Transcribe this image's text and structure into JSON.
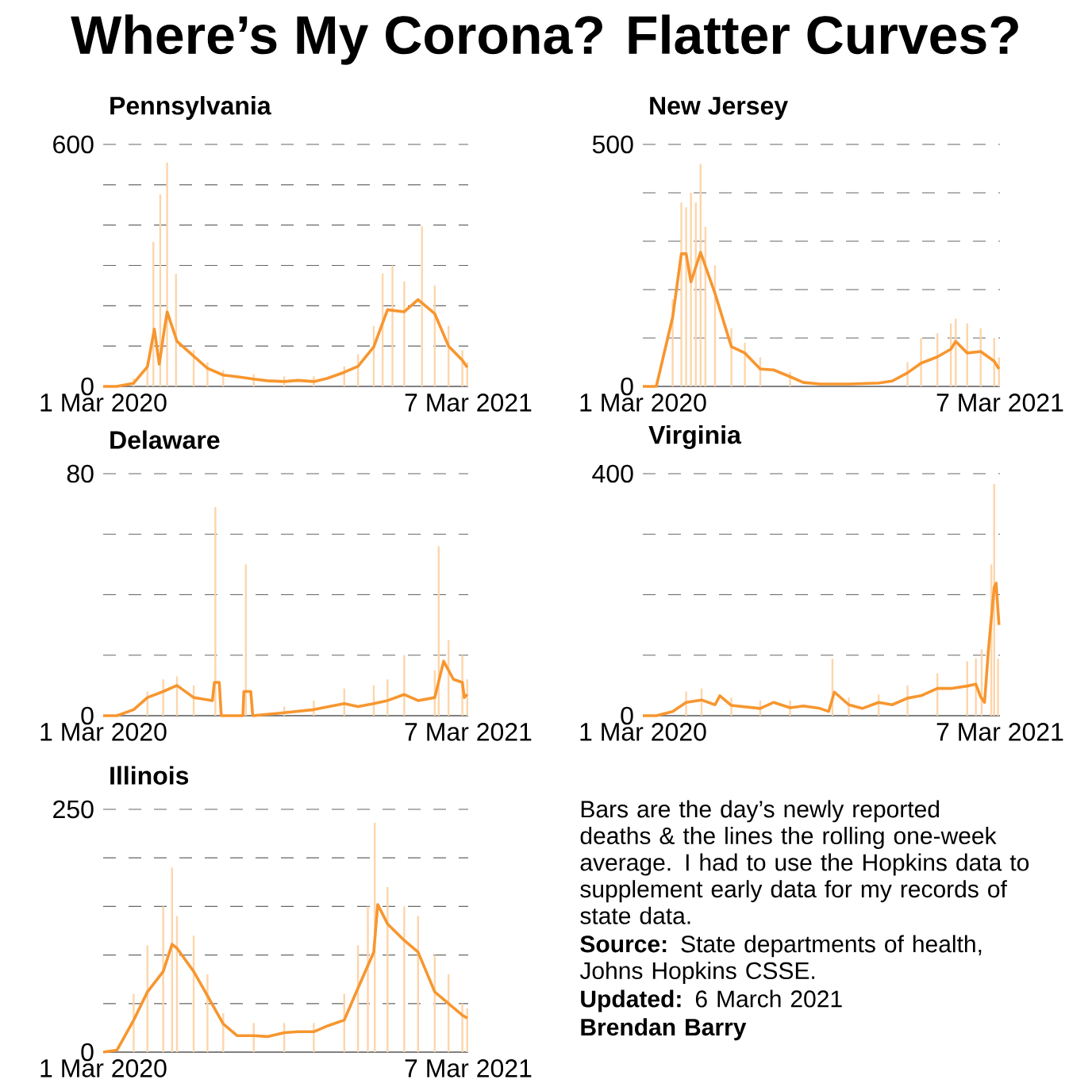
{
  "chart_data": [
    {
      "type": "bar",
      "title": "Pennsylvania",
      "grid": "y",
      "xlim": [
        "2020-03-01",
        "2021-03-07"
      ],
      "xticks": [
        {
          "value": "2020-03-01",
          "label": "1 Mar 2020"
        },
        {
          "value": "2021-03-07",
          "label": "7 Mar 2021"
        }
      ],
      "ylim": [
        0,
        600
      ],
      "yticks": [
        0,
        {
          "value": 100,
          "label": null
        },
        {
          "value": 200,
          "label": null
        },
        {
          "value": 300,
          "label": null
        },
        {
          "value": 400,
          "label": null
        },
        {
          "value": 500,
          "label": null
        },
        600
      ],
      "series": [
        {
          "type": "bar",
          "color": "#fdd5ab",
          "x": [
            "2020-03-15",
            "2020-04-01",
            "2020-04-15",
            "2020-04-21",
            "2020-04-28",
            "2020-05-05",
            "2020-05-14",
            "2020-06-01",
            "2020-06-15",
            "2020-07-01",
            "2020-08-01",
            "2020-09-01",
            "2020-10-01",
            "2020-11-01",
            "2020-11-15",
            "2020-12-01",
            "2020-12-10",
            "2020-12-20",
            "2021-01-01",
            "2021-01-19",
            "2021-02-01",
            "2021-02-15",
            "2021-03-01",
            "2021-03-06"
          ],
          "values": [
            0,
            20,
            60,
            358,
            476,
            555,
            279,
            90,
            60,
            40,
            30,
            25,
            25,
            50,
            80,
            150,
            280,
            300,
            260,
            397,
            250,
            150,
            90,
            60
          ]
        },
        {
          "type": "line",
          "color": "#f7962f",
          "x": [
            "2020-03-01",
            "2020-03-15",
            "2020-04-01",
            "2020-04-15",
            "2020-04-22",
            "2020-04-27",
            "2020-05-01",
            "2020-05-05",
            "2020-05-15",
            "2020-06-01",
            "2020-06-15",
            "2020-07-01",
            "2020-07-15",
            "2020-08-01",
            "2020-08-15",
            "2020-09-01",
            "2020-09-15",
            "2020-10-01",
            "2020-10-15",
            "2020-11-01",
            "2020-11-15",
            "2020-12-01",
            "2020-12-15",
            "2021-01-01",
            "2021-01-15",
            "2021-02-01",
            "2021-02-15",
            "2021-03-01",
            "2021-03-06"
          ],
          "values": [
            0,
            0,
            8,
            49,
            142,
            55,
            122,
            185,
            112,
            75,
            45,
            28,
            24,
            18,
            14,
            12,
            15,
            12,
            20,
            35,
            50,
            98,
            190,
            185,
            215,
            180,
            100,
            65,
            47
          ]
        }
      ]
    },
    {
      "type": "bar",
      "title": "New Jersey",
      "grid": "y",
      "xlim": [
        "2020-03-01",
        "2021-03-07"
      ],
      "xticks": [
        {
          "value": "2020-03-01",
          "label": "1 Mar 2020"
        },
        {
          "value": "2021-03-07",
          "label": "7 Mar 2021"
        }
      ],
      "ylim": [
        0,
        500
      ],
      "yticks": [
        0,
        {
          "value": 100,
          "label": null
        },
        {
          "value": 200,
          "label": null
        },
        {
          "value": 300,
          "label": null
        },
        {
          "value": 400,
          "label": null
        },
        500
      ],
      "series": [
        {
          "type": "bar",
          "color": "#fdd5ab",
          "x": [
            "2020-04-01",
            "2020-04-10",
            "2020-04-15",
            "2020-04-20",
            "2020-04-25",
            "2020-04-30",
            "2020-05-05",
            "2020-05-15",
            "2020-06-01",
            "2020-06-15",
            "2020-07-01",
            "2020-08-01",
            "2020-09-01",
            "2020-10-01",
            "2020-11-01",
            "2020-12-01",
            "2020-12-15",
            "2021-01-01",
            "2021-01-15",
            "2021-01-20",
            "2021-02-01",
            "2021-02-15",
            "2021-03-01",
            "2021-03-06"
          ],
          "values": [
            180,
            380,
            370,
            400,
            380,
            460,
            330,
            250,
            120,
            90,
            60,
            30,
            null,
            null,
            null,
            50,
            100,
            110,
            130,
            140,
            130,
            120,
            100,
            60
          ]
        },
        {
          "type": "line",
          "color": "#f7962f",
          "x": [
            "2020-03-01",
            "2020-03-15",
            "2020-04-01",
            "2020-04-10",
            "2020-04-15",
            "2020-04-20",
            "2020-04-30",
            "2020-05-15",
            "2020-06-01",
            "2020-06-15",
            "2020-07-01",
            "2020-07-15",
            "2020-08-01",
            "2020-08-15",
            "2020-09-01",
            "2020-10-01",
            "2020-11-01",
            "2020-11-15",
            "2020-12-01",
            "2020-12-15",
            "2021-01-01",
            "2021-01-15",
            "2021-01-20",
            "2021-02-01",
            "2021-02-15",
            "2021-03-01",
            "2021-03-06"
          ],
          "values": [
            0,
            0,
            143,
            274,
            274,
            216,
            277,
            192,
            82,
            69,
            36,
            34,
            20,
            8,
            5,
            5,
            7,
            11,
            28,
            48,
            61,
            77,
            93,
            69,
            72,
            52,
            36
          ]
        }
      ]
    },
    {
      "type": "bar",
      "title": "Delaware",
      "grid": "y",
      "xlim": [
        "2020-03-01",
        "2021-03-07"
      ],
      "xticks": [
        {
          "value": "2020-03-01",
          "label": "1 Mar 2020"
        },
        {
          "value": "2021-03-07",
          "label": "7 Mar 2021"
        }
      ],
      "ylim": [
        0,
        80
      ],
      "yticks": [
        0,
        {
          "value": 20,
          "label": null
        },
        {
          "value": 40,
          "label": null
        },
        {
          "value": 60,
          "label": null
        },
        80
      ],
      "series": [
        {
          "type": "bar",
          "color": "#fdd5ab",
          "x": [
            "2020-04-15",
            "2020-05-01",
            "2020-05-15",
            "2020-06-01",
            "2020-06-23",
            "2020-07-24",
            "2020-09-01",
            "2020-10-01",
            "2020-11-01",
            "2020-12-01",
            "2020-12-15",
            "2021-01-01",
            "2021-02-01",
            "2021-02-05",
            "2021-02-15",
            "2021-03-01",
            "2021-03-06"
          ],
          "values": [
            8,
            12,
            13,
            10,
            69,
            50,
            3,
            5,
            9,
            10,
            12,
            20,
            15,
            56,
            25,
            20,
            12
          ]
        },
        {
          "type": "line",
          "color": "#f7962f",
          "x": [
            "2020-03-01",
            "2020-03-15",
            "2020-04-01",
            "2020-04-15",
            "2020-05-01",
            "2020-05-15",
            "2020-06-01",
            "2020-06-20",
            "2020-06-22",
            "2020-06-27",
            "2020-06-29",
            "2020-07-21",
            "2020-07-22",
            "2020-07-29",
            "2020-07-31",
            "2020-09-01",
            "2020-10-01",
            "2020-11-01",
            "2020-11-15",
            "2020-12-01",
            "2020-12-15",
            "2021-01-01",
            "2021-01-15",
            "2021-02-01",
            "2021-02-10",
            "2021-02-15",
            "2021-02-20",
            "2021-03-01",
            "2021-03-03",
            "2021-03-06"
          ],
          "values": [
            0,
            0,
            2,
            6,
            8,
            10,
            6,
            5,
            11,
            11,
            0,
            0,
            8,
            8,
            0,
            1,
            2,
            4,
            3,
            4,
            5,
            7,
            5,
            6,
            18,
            15,
            12,
            11,
            6,
            7
          ]
        }
      ]
    },
    {
      "type": "bar",
      "title": "Virginia",
      "grid": "y",
      "xlim": [
        "2020-03-01",
        "2021-03-07"
      ],
      "xticks": [
        {
          "value": "2020-03-01",
          "label": "1 Mar 2020"
        },
        {
          "value": "2021-03-07",
          "label": "7 Mar 2021"
        }
      ],
      "ylim": [
        0,
        400
      ],
      "yticks": [
        0,
        {
          "value": 100,
          "label": null
        },
        {
          "value": 200,
          "label": null
        },
        {
          "value": 300,
          "label": null
        },
        400
      ],
      "series": [
        {
          "type": "bar",
          "color": "#fdd5ab",
          "x": [
            "2020-04-15",
            "2020-05-01",
            "2020-06-01",
            "2020-07-01",
            "2020-08-01",
            "2020-09-14",
            "2020-10-01",
            "2020-11-01",
            "2020-12-01",
            "2021-01-01",
            "2021-02-01",
            "2021-02-10",
            "2021-02-16",
            "2021-02-26",
            "2021-03-01",
            "2021-03-05"
          ],
          "values": [
            40,
            45,
            30,
            25,
            25,
            94,
            30,
            35,
            50,
            70,
            90,
            95,
            110,
            250,
            383,
            94
          ]
        },
        {
          "type": "line",
          "color": "#f7962f",
          "x": [
            "2020-03-01",
            "2020-03-15",
            "2020-04-01",
            "2020-04-15",
            "2020-05-01",
            "2020-05-15",
            "2020-05-20",
            "2020-06-01",
            "2020-07-01",
            "2020-07-15",
            "2020-08-01",
            "2020-08-15",
            "2020-09-01",
            "2020-09-10",
            "2020-09-16",
            "2020-10-01",
            "2020-10-15",
            "2020-11-01",
            "2020-11-15",
            "2020-12-01",
            "2020-12-15",
            "2021-01-01",
            "2021-01-15",
            "2021-02-01",
            "2021-02-10",
            "2021-02-15",
            "2021-02-19",
            "2021-02-23",
            "2021-03-01",
            "2021-03-03",
            "2021-03-06"
          ],
          "values": [
            0,
            0,
            7,
            22,
            26,
            18,
            33,
            17,
            12,
            22,
            13,
            16,
            12,
            7,
            39,
            18,
            12,
            22,
            18,
            29,
            33,
            45,
            45,
            49,
            52,
            31,
            22,
            108,
            212,
            219,
            150
          ]
        }
      ]
    },
    {
      "type": "bar",
      "title": "Illinois",
      "grid": "y",
      "xlim": [
        "2020-03-01",
        "2021-03-07"
      ],
      "xticks": [
        {
          "value": "2020-03-01",
          "label": "1 Mar 2020"
        },
        {
          "value": "2021-03-07",
          "label": "7 Mar 2021"
        }
      ],
      "ylim": [
        0,
        250
      ],
      "yticks": [
        0,
        {
          "value": 50,
          "label": null
        },
        {
          "value": 100,
          "label": null
        },
        {
          "value": 150,
          "label": null
        },
        {
          "value": 200,
          "label": null
        },
        250
      ],
      "series": [
        {
          "type": "bar",
          "color": "#fdd5ab",
          "x": [
            "2020-04-01",
            "2020-04-15",
            "2020-05-01",
            "2020-05-10",
            "2020-05-15",
            "2020-06-01",
            "2020-06-15",
            "2020-07-01",
            "2020-08-01",
            "2020-09-01",
            "2020-10-01",
            "2020-11-01",
            "2020-11-15",
            "2020-11-25",
            "2020-12-02",
            "2020-12-15",
            "2021-01-01",
            "2021-01-15",
            "2021-02-01",
            "2021-02-15",
            "2021-03-01",
            "2021-03-06"
          ],
          "values": [
            60,
            110,
            150,
            190,
            140,
            120,
            80,
            40,
            30,
            30,
            30,
            60,
            110,
            150,
            236,
            170,
            150,
            140,
            100,
            80,
            50,
            45
          ]
        },
        {
          "type": "line",
          "color": "#f7962f",
          "x": [
            "2020-03-01",
            "2020-03-15",
            "2020-04-01",
            "2020-04-15",
            "2020-05-01",
            "2020-05-10",
            "2020-05-15",
            "2020-06-01",
            "2020-06-15",
            "2020-07-01",
            "2020-07-15",
            "2020-08-01",
            "2020-08-15",
            "2020-09-01",
            "2020-09-15",
            "2020-10-01",
            "2020-10-15",
            "2020-11-01",
            "2020-11-15",
            "2020-12-01",
            "2020-12-05",
            "2020-12-15",
            "2021-01-01",
            "2021-01-15",
            "2021-02-01",
            "2021-02-15",
            "2021-03-01",
            "2021-03-06"
          ],
          "values": [
            0,
            2,
            33,
            62,
            83,
            111,
            107,
            83,
            58,
            29,
            17,
            17,
            16,
            20,
            21,
            21,
            27,
            33,
            66,
            103,
            152,
            132,
            115,
            103,
            62,
            50,
            38,
            35
          ]
        }
      ]
    },
    {
      "type": "other",
      "title": "Where’s My Corona? Flatter Curves?",
      "annotations": [
        "Bars are the day’s newly reported deaths & the lines the rolling one-week average. I had to use the Hopkins data to supplement early data for my records of state data.",
        "**Source:** State departments of health, Johns Hopkins CSSE.",
        "**Updated:** 6 March 2021",
        "**Brendan Barry**"
      ]
    }
  ]
}
